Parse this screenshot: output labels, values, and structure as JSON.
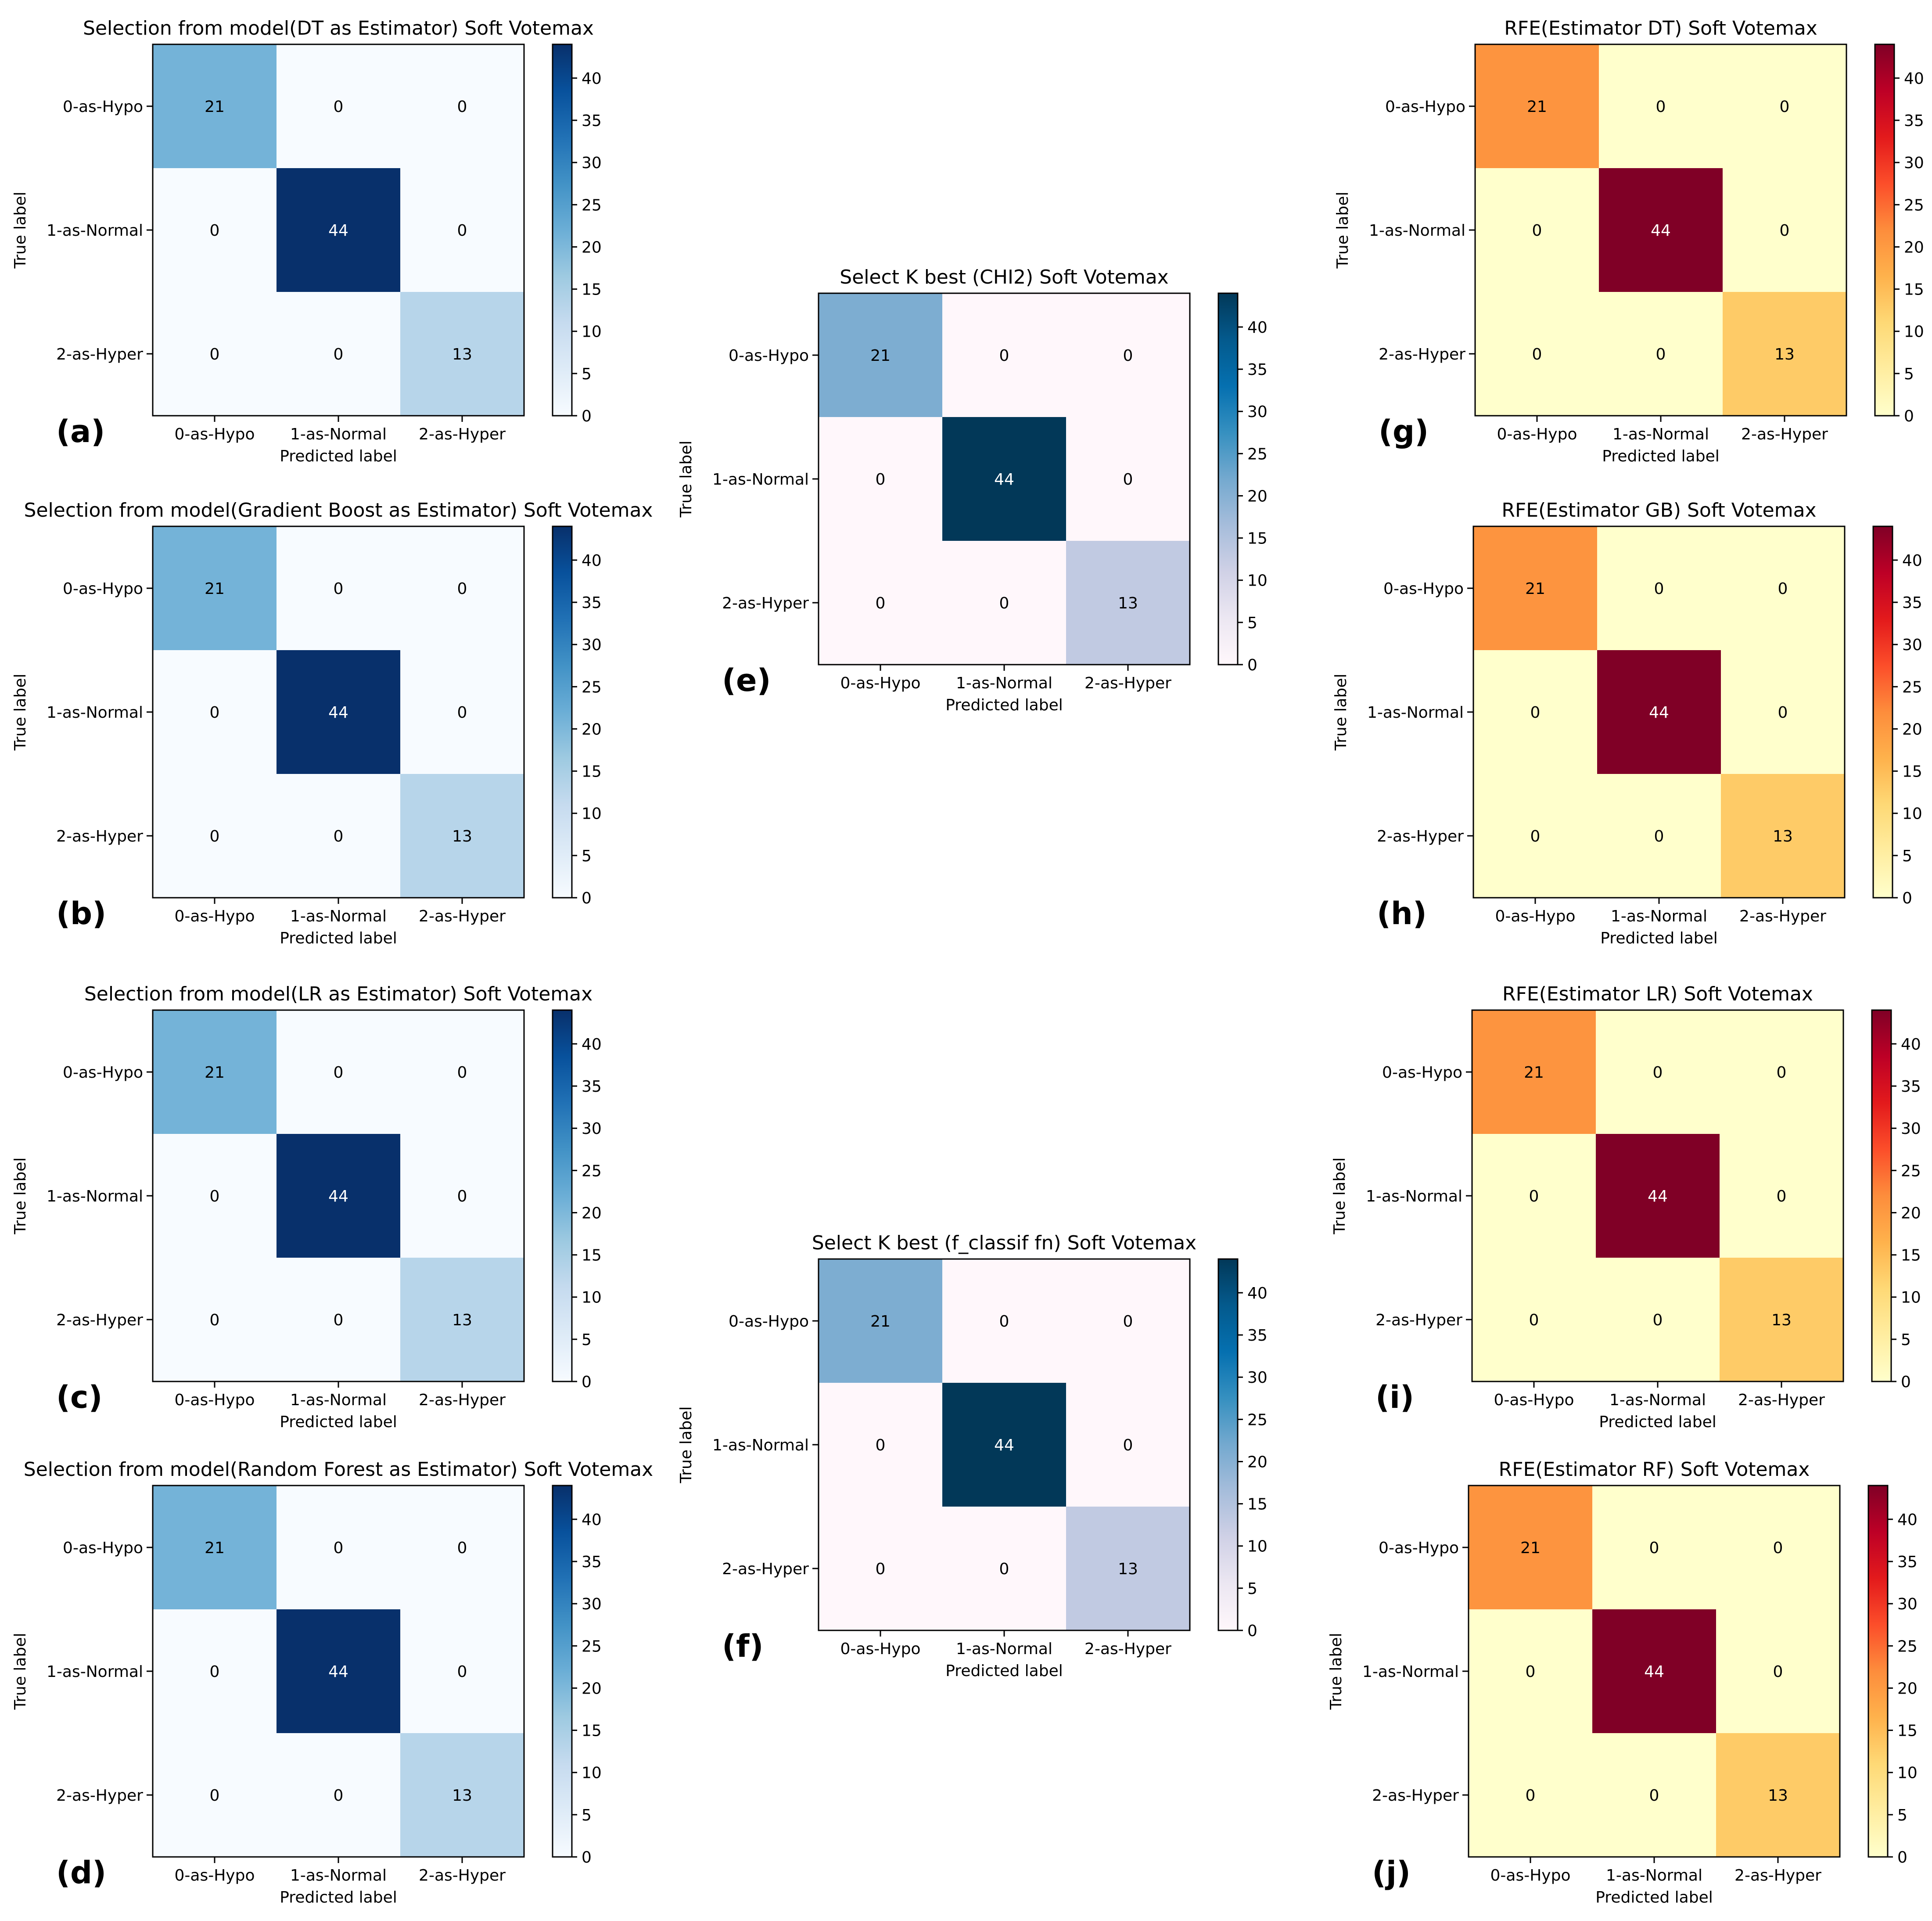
{
  "figure": {
    "description_labels": [
      "(a)",
      "(b)",
      "(c)",
      "(d)",
      "(e)",
      "(f)",
      "(g)",
      "(h)",
      "(i)",
      "(j)"
    ]
  },
  "chart_data": [
    {
      "panel": "(a)",
      "type": "heatmap",
      "cmap": "blues",
      "title": "Selection from model(DT as Estimator) Soft Votemax",
      "xlabel": "Predicted label",
      "ylabel": "True label",
      "x_categories": [
        "0-as-Hypo",
        "1-as-Normal",
        "2-as-Hyper"
      ],
      "y_categories": [
        "0-as-Hypo",
        "1-as-Normal",
        "2-as-Hyper"
      ],
      "values": [
        [
          21,
          0,
          0
        ],
        [
          0,
          44,
          0
        ],
        [
          0,
          0,
          13
        ]
      ],
      "colorbar": {
        "range": [
          0,
          44
        ],
        "ticks": [
          0,
          5,
          10,
          15,
          20,
          25,
          30,
          35,
          40
        ]
      }
    },
    {
      "panel": "(b)",
      "type": "heatmap",
      "cmap": "blues",
      "title": "Selection from model(Gradient Boost as Estimator) Soft Votemax",
      "xlabel": "Predicted label",
      "ylabel": "True label",
      "x_categories": [
        "0-as-Hypo",
        "1-as-Normal",
        "2-as-Hyper"
      ],
      "y_categories": [
        "0-as-Hypo",
        "1-as-Normal",
        "2-as-Hyper"
      ],
      "values": [
        [
          21,
          0,
          0
        ],
        [
          0,
          44,
          0
        ],
        [
          0,
          0,
          13
        ]
      ],
      "colorbar": {
        "range": [
          0,
          44
        ],
        "ticks": [
          0,
          5,
          10,
          15,
          20,
          25,
          30,
          35,
          40
        ]
      }
    },
    {
      "panel": "(c)",
      "type": "heatmap",
      "cmap": "blues",
      "title": "Selection from model(LR as Estimator) Soft Votemax",
      "xlabel": "Predicted label",
      "ylabel": "True label",
      "x_categories": [
        "0-as-Hypo",
        "1-as-Normal",
        "2-as-Hyper"
      ],
      "y_categories": [
        "0-as-Hypo",
        "1-as-Normal",
        "2-as-Hyper"
      ],
      "values": [
        [
          21,
          0,
          0
        ],
        [
          0,
          44,
          0
        ],
        [
          0,
          0,
          13
        ]
      ],
      "colorbar": {
        "range": [
          0,
          44
        ],
        "ticks": [
          0,
          5,
          10,
          15,
          20,
          25,
          30,
          35,
          40
        ]
      }
    },
    {
      "panel": "(d)",
      "type": "heatmap",
      "cmap": "blues",
      "title": "Selection from model(Random Forest as Estimator) Soft Votemax",
      "xlabel": "Predicted label",
      "ylabel": "True label",
      "x_categories": [
        "0-as-Hypo",
        "1-as-Normal",
        "2-as-Hyper"
      ],
      "y_categories": [
        "0-as-Hypo",
        "1-as-Normal",
        "2-as-Hyper"
      ],
      "values": [
        [
          21,
          0,
          0
        ],
        [
          0,
          44,
          0
        ],
        [
          0,
          0,
          13
        ]
      ],
      "colorbar": {
        "range": [
          0,
          44
        ],
        "ticks": [
          0,
          5,
          10,
          15,
          20,
          25,
          30,
          35,
          40
        ]
      }
    },
    {
      "panel": "(e)",
      "type": "heatmap",
      "cmap": "pubu",
      "title": "Select K best (CHI2) Soft Votemax",
      "xlabel": "Predicted label",
      "ylabel": "True label",
      "x_categories": [
        "0-as-Hypo",
        "1-as-Normal",
        "2-as-Hyper"
      ],
      "y_categories": [
        "0-as-Hypo",
        "1-as-Normal",
        "2-as-Hyper"
      ],
      "values": [
        [
          21,
          0,
          0
        ],
        [
          0,
          44,
          0
        ],
        [
          0,
          0,
          13
        ]
      ],
      "colorbar": {
        "range": [
          0,
          44
        ],
        "ticks": [
          0,
          5,
          10,
          15,
          20,
          25,
          30,
          35,
          40
        ]
      }
    },
    {
      "panel": "(f)",
      "type": "heatmap",
      "cmap": "pubu",
      "title": "Select K best (f_classif fn) Soft Votemax",
      "xlabel": "Predicted label",
      "ylabel": "True label",
      "x_categories": [
        "0-as-Hypo",
        "1-as-Normal",
        "2-as-Hyper"
      ],
      "y_categories": [
        "0-as-Hypo",
        "1-as-Normal",
        "2-as-Hyper"
      ],
      "values": [
        [
          21,
          0,
          0
        ],
        [
          0,
          44,
          0
        ],
        [
          0,
          0,
          13
        ]
      ],
      "colorbar": {
        "range": [
          0,
          44
        ],
        "ticks": [
          0,
          5,
          10,
          15,
          20,
          25,
          30,
          35,
          40
        ]
      }
    },
    {
      "panel": "(g)",
      "type": "heatmap",
      "cmap": "ylorrd",
      "title": "RFE(Estimator DT) Soft Votemax",
      "xlabel": "Predicted label",
      "ylabel": "True label",
      "x_categories": [
        "0-as-Hypo",
        "1-as-Normal",
        "2-as-Hyper"
      ],
      "y_categories": [
        "0-as-Hypo",
        "1-as-Normal",
        "2-as-Hyper"
      ],
      "values": [
        [
          21,
          0,
          0
        ],
        [
          0,
          44,
          0
        ],
        [
          0,
          0,
          13
        ]
      ],
      "colorbar": {
        "range": [
          0,
          44
        ],
        "ticks": [
          0,
          5,
          10,
          15,
          20,
          25,
          30,
          35,
          40
        ]
      }
    },
    {
      "panel": "(h)",
      "type": "heatmap",
      "cmap": "ylorrd",
      "title": "RFE(Estimator GB) Soft Votemax",
      "xlabel": "Predicted label",
      "ylabel": "True label",
      "x_categories": [
        "0-as-Hypo",
        "1-as-Normal",
        "2-as-Hyper"
      ],
      "y_categories": [
        "0-as-Hypo",
        "1-as-Normal",
        "2-as-Hyper"
      ],
      "values": [
        [
          21,
          0,
          0
        ],
        [
          0,
          44,
          0
        ],
        [
          0,
          0,
          13
        ]
      ],
      "colorbar": {
        "range": [
          0,
          44
        ],
        "ticks": [
          0,
          5,
          10,
          15,
          20,
          25,
          30,
          35,
          40
        ]
      }
    },
    {
      "panel": "(i)",
      "type": "heatmap",
      "cmap": "ylorrd",
      "title": "RFE(Estimator LR) Soft Votemax",
      "xlabel": "Predicted label",
      "ylabel": "True label",
      "x_categories": [
        "0-as-Hypo",
        "1-as-Normal",
        "2-as-Hyper"
      ],
      "y_categories": [
        "0-as-Hypo",
        "1-as-Normal",
        "2-as-Hyper"
      ],
      "values": [
        [
          21,
          0,
          0
        ],
        [
          0,
          44,
          0
        ],
        [
          0,
          0,
          13
        ]
      ],
      "colorbar": {
        "range": [
          0,
          44
        ],
        "ticks": [
          0,
          5,
          10,
          15,
          20,
          25,
          30,
          35,
          40
        ]
      }
    },
    {
      "panel": "(j)",
      "type": "heatmap",
      "cmap": "ylorrd",
      "title": "RFE(Estimator RF) Soft Votemax",
      "xlabel": "Predicted label",
      "ylabel": "True label",
      "x_categories": [
        "0-as-Hypo",
        "1-as-Normal",
        "2-as-Hyper"
      ],
      "y_categories": [
        "0-as-Hypo",
        "1-as-Normal",
        "2-as-Hyper"
      ],
      "values": [
        [
          21,
          0,
          0
        ],
        [
          0,
          44,
          0
        ],
        [
          0,
          0,
          13
        ]
      ],
      "colorbar": {
        "range": [
          0,
          44
        ],
        "ticks": [
          0,
          5,
          10,
          15,
          20,
          25,
          30,
          35,
          40
        ]
      }
    }
  ]
}
